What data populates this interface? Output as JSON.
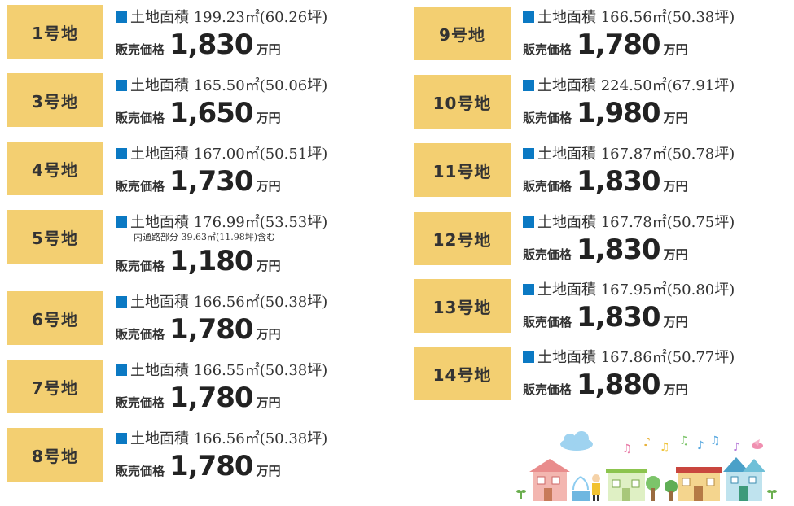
{
  "left_lots": [
    {
      "label": "1号地",
      "area": "土地面積 199.23㎡(60.26坪)",
      "note": "",
      "price_label": "販売価格",
      "price": "1,830",
      "unit": "万円"
    },
    {
      "label": "3号地",
      "area": "土地面積 165.50㎡(50.06坪)",
      "note": "",
      "price_label": "販売価格",
      "price": "1,650",
      "unit": "万円"
    },
    {
      "label": "4号地",
      "area": "土地面積 167.00㎡(50.51坪)",
      "note": "",
      "price_label": "販売価格",
      "price": "1,730",
      "unit": "万円"
    },
    {
      "label": "5号地",
      "area": "土地面積 176.99㎡(53.53坪)",
      "note": "内通路部分 39.63㎡(11.98坪)含む",
      "price_label": "販売価格",
      "price": "1,180",
      "unit": "万円"
    },
    {
      "label": "6号地",
      "area": "土地面積 166.56㎡(50.38坪)",
      "note": "",
      "price_label": "販売価格",
      "price": "1,780",
      "unit": "万円"
    },
    {
      "label": "7号地",
      "area": "土地面積 166.55㎡(50.38坪)",
      "note": "",
      "price_label": "販売価格",
      "price": "1,780",
      "unit": "万円"
    },
    {
      "label": "8号地",
      "area": "土地面積 166.56㎡(50.38坪)",
      "note": "",
      "price_label": "販売価格",
      "price": "1,780",
      "unit": "万円"
    }
  ],
  "right_lots": [
    {
      "label": "9号地",
      "area": "土地面積 166.56㎡(50.38坪)",
      "note": "",
      "price_label": "販売価格",
      "price": "1,780",
      "unit": "万円"
    },
    {
      "label": "10号地",
      "area": "土地面積 224.50㎡(67.91坪)",
      "note": "",
      "price_label": "販売価格",
      "price": "1,980",
      "unit": "万円"
    },
    {
      "label": "11号地",
      "area": "土地面積 167.87㎡(50.78坪)",
      "note": "",
      "price_label": "販売価格",
      "price": "1,830",
      "unit": "万円"
    },
    {
      "label": "12号地",
      "area": "土地面積 167.78㎡(50.75坪)",
      "note": "",
      "price_label": "販売価格",
      "price": "1,830",
      "unit": "万円"
    },
    {
      "label": "13号地",
      "area": "土地面積 167.95㎡(50.80坪)",
      "note": "",
      "price_label": "販売価格",
      "price": "1,830",
      "unit": "万円"
    },
    {
      "label": "14号地",
      "area": "土地面積 167.86㎡(50.77坪)",
      "note": "",
      "price_label": "販売価格",
      "price": "1,880",
      "unit": "万円"
    }
  ],
  "colors": {
    "badge": "#f3cf71",
    "square": "#0b79c3"
  },
  "illustration": {
    "icons": [
      "cloud-icon",
      "music-notes-icon",
      "bird-icon",
      "house-icon",
      "fountain-icon",
      "person-icon",
      "tree-icon",
      "sprout-icon"
    ]
  }
}
